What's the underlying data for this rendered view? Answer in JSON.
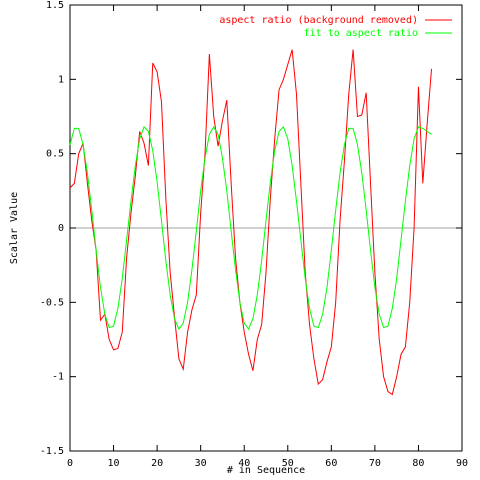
{
  "chart_data": {
    "type": "line",
    "xlabel": "# in Sequence",
    "ylabel": "Scalar Value",
    "x": [
      0,
      1,
      2,
      3,
      4,
      5,
      6,
      7,
      8,
      9,
      10,
      11,
      12,
      13,
      14,
      15,
      16,
      17,
      18,
      19,
      20,
      21,
      22,
      23,
      24,
      25,
      26,
      27,
      28,
      29,
      30,
      31,
      32,
      33,
      34,
      35,
      36,
      37,
      38,
      39,
      40,
      41,
      42,
      43,
      44,
      45,
      46,
      47,
      48,
      49,
      50,
      51,
      52,
      53,
      54,
      55,
      56,
      57,
      58,
      59,
      60,
      61,
      62,
      63,
      64,
      65,
      66,
      67,
      68,
      69,
      70,
      71,
      72,
      73,
      74,
      75,
      76,
      77,
      78,
      79,
      80,
      81,
      82,
      83
    ],
    "series": [
      {
        "name": "aspect ratio (background removed)",
        "color": "#ff0000",
        "values": [
          0.27,
          0.3,
          0.5,
          0.57,
          0.3,
          0.05,
          -0.15,
          -0.62,
          -0.58,
          -0.75,
          -0.82,
          -0.81,
          -0.7,
          -0.2,
          0.1,
          0.35,
          0.65,
          0.57,
          0.42,
          1.11,
          1.05,
          0.85,
          0.2,
          -0.3,
          -0.6,
          -0.88,
          -0.95,
          -0.7,
          -0.55,
          -0.45,
          0.1,
          0.5,
          1.17,
          0.75,
          0.55,
          0.72,
          0.86,
          0.3,
          -0.2,
          -0.5,
          -0.7,
          -0.85,
          -0.96,
          -0.75,
          -0.65,
          -0.3,
          0.2,
          0.6,
          0.93,
          1.0,
          1.1,
          1.2,
          0.9,
          0.3,
          -0.3,
          -0.65,
          -0.88,
          -1.05,
          -1.02,
          -0.9,
          -0.8,
          -0.5,
          0.05,
          0.45,
          0.9,
          1.2,
          0.75,
          0.76,
          0.91,
          0.3,
          -0.3,
          -0.75,
          -1.0,
          -1.1,
          -1.12,
          -1.0,
          -0.85,
          -0.8,
          -0.5,
          0.0,
          0.95,
          0.3,
          0.7,
          1.07
        ]
      },
      {
        "name": "fit to aspect ratio",
        "color": "#00ff00",
        "values": [
          0.56,
          0.67,
          0.67,
          0.56,
          0.37,
          0.12,
          -0.15,
          -0.4,
          -0.58,
          -0.67,
          -0.66,
          -0.54,
          -0.34,
          -0.08,
          0.18,
          0.42,
          0.6,
          0.68,
          0.65,
          0.52,
          0.31,
          0.05,
          -0.22,
          -0.45,
          -0.61,
          -0.68,
          -0.64,
          -0.5,
          -0.28,
          -0.02,
          0.25,
          0.47,
          0.63,
          0.68,
          0.63,
          0.47,
          0.25,
          -0.02,
          -0.28,
          -0.5,
          -0.64,
          -0.68,
          -0.61,
          -0.45,
          -0.22,
          0.05,
          0.31,
          0.52,
          0.65,
          0.68,
          0.6,
          0.42,
          0.18,
          -0.08,
          -0.34,
          -0.54,
          -0.66,
          -0.67,
          -0.58,
          -0.4,
          -0.15,
          0.12,
          0.37,
          0.56,
          0.67,
          0.67,
          0.56,
          0.37,
          0.12,
          -0.15,
          -0.4,
          -0.58,
          -0.67,
          -0.66,
          -0.54,
          -0.34,
          -0.08,
          0.18,
          0.42,
          0.6,
          0.68,
          0.67,
          0.65,
          0.63
        ]
      }
    ],
    "xlim": [
      0,
      90
    ],
    "xticks": [
      0,
      10,
      20,
      30,
      40,
      50,
      60,
      70,
      80,
      90
    ],
    "ylim": [
      -1.5,
      1.5
    ],
    "yticks": [
      -1.5,
      -1,
      -0.5,
      0,
      0.5,
      1,
      1.5
    ],
    "zeroaxis": true,
    "legend": "top-right"
  }
}
